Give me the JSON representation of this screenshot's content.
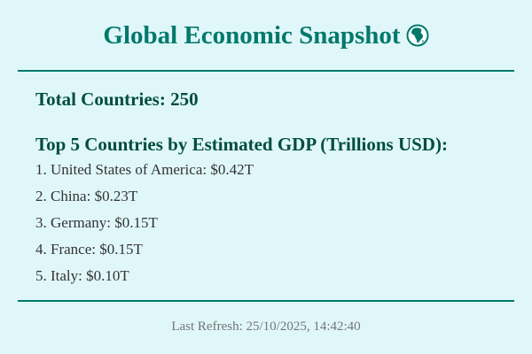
{
  "header": {
    "title": "Global Economic Snapshot",
    "icon": "globe-africa-icon"
  },
  "summary": {
    "total_countries": "Total Countries: 250"
  },
  "top_countries": {
    "heading": "Top 5 Countries by Estimated GDP (Trillions USD):",
    "items": [
      "1. United States of America: $0.42T",
      "2. China: $0.23T",
      "3. Germany: $0.15T",
      "4. France: $0.15T",
      "5. Italy: $0.10T"
    ]
  },
  "footer": {
    "last_refresh": "Last Refresh: 25/10/2025, 14:42:40"
  },
  "colors": {
    "background": "#e0f7fa",
    "accent": "#00796b",
    "heading": "#004d40",
    "body_text": "#333333",
    "muted": "#757575"
  }
}
